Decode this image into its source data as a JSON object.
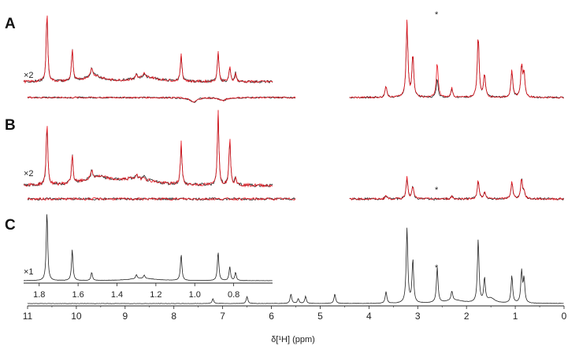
{
  "chart_data": {
    "type": "line",
    "panels": [
      {
        "label": "A",
        "inset_scale": "×2",
        "series_colors": [
          "#222222",
          "#e8141e"
        ],
        "asterisk": "*"
      },
      {
        "label": "B",
        "inset_scale": "×2",
        "series_colors": [
          "#222222",
          "#e8141e"
        ],
        "asterisk": "*"
      },
      {
        "label": "C",
        "inset_scale": "×1",
        "series_colors": [
          "#222222"
        ],
        "asterisk": "*"
      }
    ],
    "x_axis": {
      "label": "δ[¹H] (ppm)",
      "ticks": [
        "11",
        "10",
        "9",
        "8",
        "7",
        "6",
        "5",
        "4",
        "3",
        "2",
        "1",
        "0"
      ],
      "xlim": [
        11,
        0
      ],
      "reversed": true
    },
    "inset_axis": {
      "ticks": [
        "1.8",
        "1.6",
        "1.4",
        "1.2",
        "1.0",
        "0.8"
      ],
      "xlim": [
        1.88,
        0.6
      ],
      "reversed": true
    },
    "asterisk_position_ppm": 2.6,
    "peaks_ppm": [
      {
        "x": 3.65,
        "h": 0.15
      },
      {
        "x": 3.22,
        "h": 0.95
      },
      {
        "x": 3.1,
        "h": 0.55
      },
      {
        "x": 2.6,
        "h": 0.45
      },
      {
        "x": 2.3,
        "h": 0.12
      },
      {
        "x": 1.76,
        "h": 0.8
      },
      {
        "x": 1.63,
        "h": 0.3
      },
      {
        "x": 1.07,
        "h": 0.35
      },
      {
        "x": 0.87,
        "h": 0.4
      },
      {
        "x": 0.82,
        "h": 0.3
      }
    ],
    "inset_peaks_ppm": [
      {
        "x": 1.76,
        "h": 1.0
      },
      {
        "x": 1.63,
        "h": 0.45
      },
      {
        "x": 1.53,
        "h": 0.12
      },
      {
        "x": 1.3,
        "h": 0.06
      },
      {
        "x": 1.26,
        "h": 0.05
      },
      {
        "x": 1.07,
        "h": 0.38
      },
      {
        "x": 0.88,
        "h": 0.42
      },
      {
        "x": 0.82,
        "h": 0.2
      },
      {
        "x": 0.79,
        "h": 0.12
      }
    ]
  }
}
